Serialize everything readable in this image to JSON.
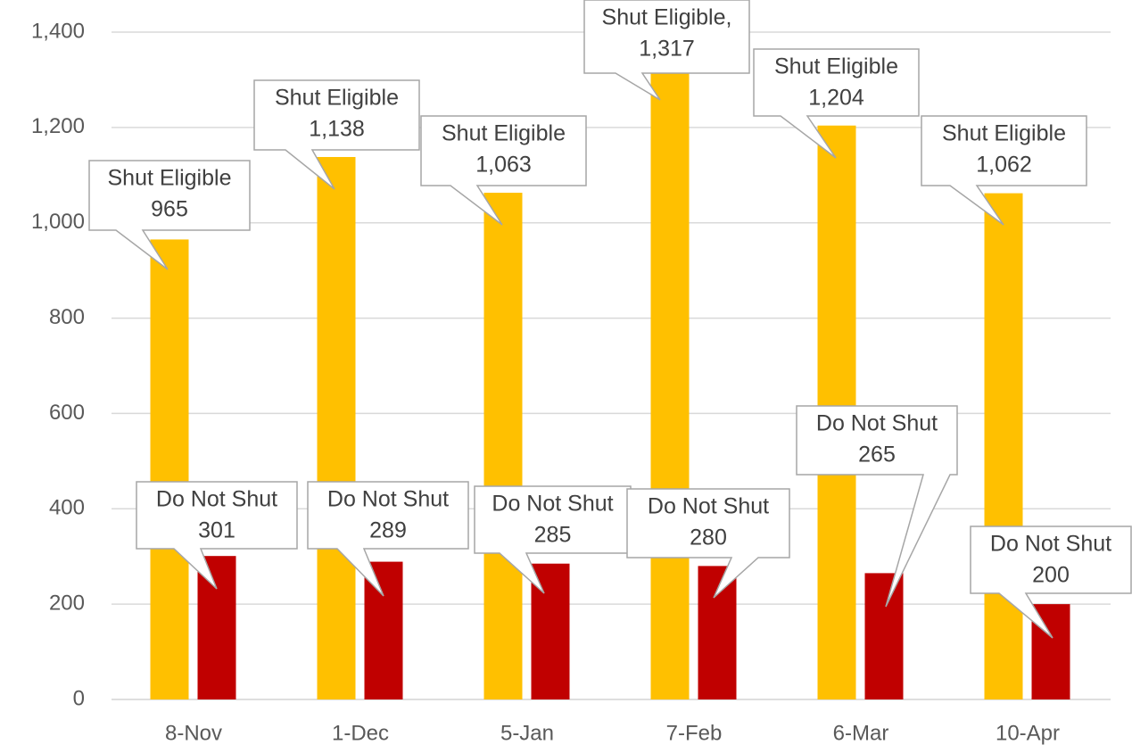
{
  "chart_data": {
    "type": "bar",
    "categories": [
      "8-Nov",
      "1-Dec",
      "5-Jan",
      "7-Feb",
      "6-Mar",
      "10-Apr"
    ],
    "series": [
      {
        "color": "#ffc000",
        "values": [
          965,
          1138,
          1063,
          1317,
          1204,
          1062
        ],
        "value_labels": [
          [
            "Shut Eligible",
            "965"
          ],
          [
            "Shut Eligible",
            "1,138"
          ],
          [
            "Shut Eligible",
            "1,063"
          ],
          [
            "Shut Eligible,",
            "1,317"
          ],
          [
            "Shut Eligible",
            "1,204"
          ],
          [
            "Shut Eligible",
            "1,062"
          ]
        ]
      },
      {
        "color": "#c00000",
        "values": [
          301,
          289,
          285,
          280,
          265,
          200
        ],
        "value_labels": [
          [
            "Do Not Shut",
            "301"
          ],
          [
            "Do Not Shut",
            "289"
          ],
          [
            "Do Not Shut",
            "285"
          ],
          [
            "Do Not Shut",
            "280"
          ],
          [
            "Do Not Shut",
            "265"
          ],
          [
            "Do Not Shut",
            "200"
          ]
        ]
      }
    ],
    "ylim": [
      0,
      1400
    ],
    "yticks": [
      0,
      {
        "value": 200,
        "label": "200"
      },
      400,
      600,
      800,
      {
        "value": 1000,
        "label": "1,000"
      },
      {
        "value": 1200,
        "label": "1,200"
      },
      {
        "value": 1400,
        "label": "1,400"
      }
    ],
    "grid": true
  }
}
